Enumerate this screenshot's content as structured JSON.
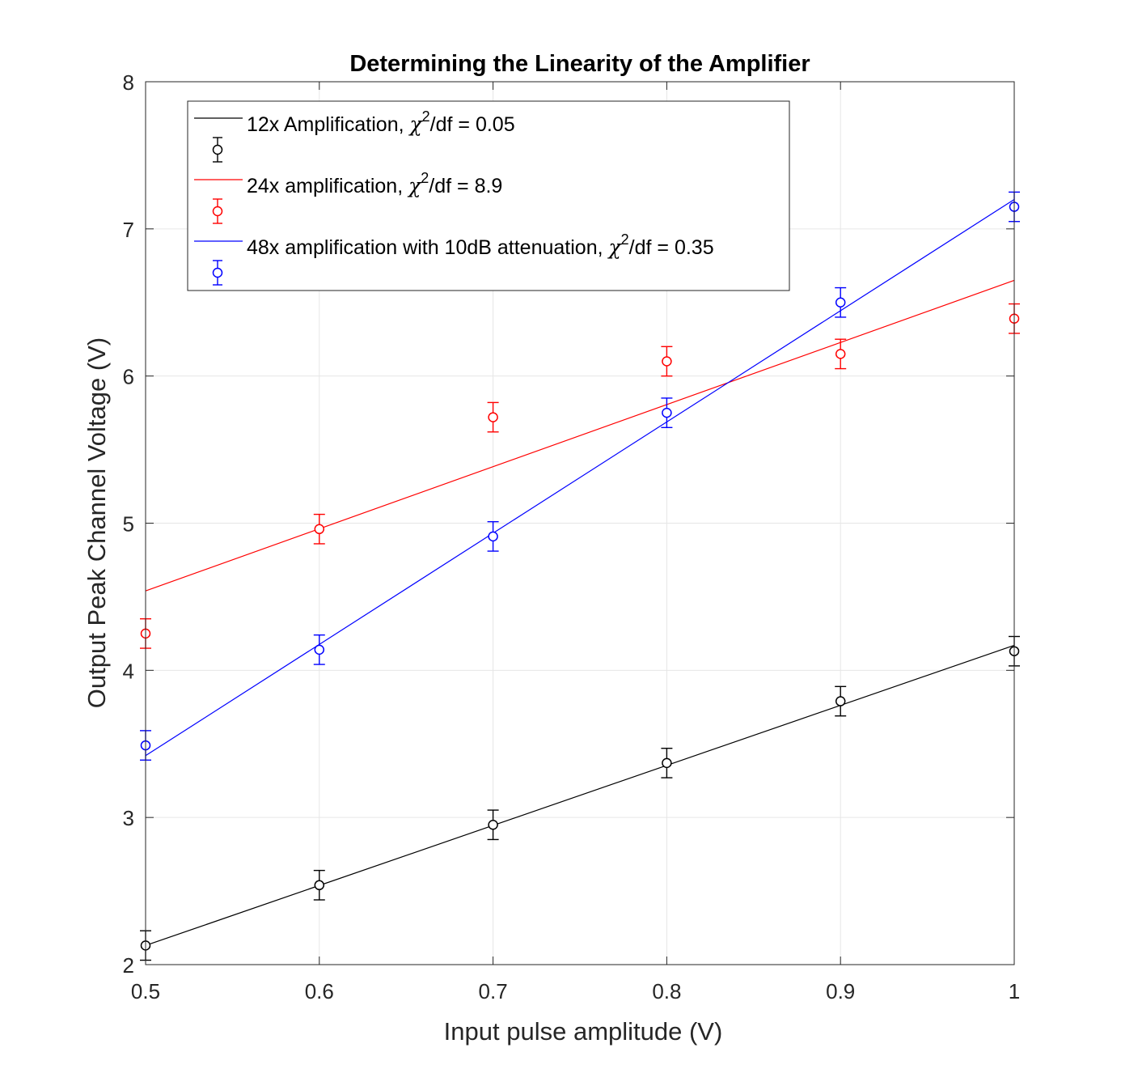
{
  "chart_data": {
    "type": "scatter",
    "title": "Determining the Linearity of the Amplifier",
    "xlabel": "Input pulse amplitude (V)",
    "ylabel": "Output Peak Channel Voltage (V)",
    "xlim": [
      0.5,
      1
    ],
    "ylim": [
      2,
      8
    ],
    "xticks": [
      0.5,
      0.6,
      0.7,
      0.8,
      0.9,
      1
    ],
    "xtick_labels": [
      "0.5",
      "0.6",
      "0.7",
      "0.8",
      "0.9",
      "1"
    ],
    "yticks": [
      2,
      3,
      4,
      5,
      6,
      7,
      8
    ],
    "ytick_labels": [
      "2",
      "3",
      "4",
      "5",
      "6",
      "7",
      "8"
    ],
    "grid": true,
    "legend_position": "top-left",
    "series": [
      {
        "name": "12x Amplification",
        "chi_symbol": "χ",
        "chi_exp": "2",
        "chi_suffix": "/df = 0.05",
        "color": "#000000",
        "x": [
          0.5,
          0.6,
          0.7,
          0.8,
          0.9,
          1.0
        ],
        "y": [
          2.13,
          2.54,
          2.95,
          3.37,
          3.79,
          4.13
        ],
        "error": [
          0.1,
          0.1,
          0.1,
          0.1,
          0.1,
          0.1
        ],
        "fit_line": [
          [
            0.5,
            2.13
          ],
          [
            1.0,
            4.17
          ]
        ]
      },
      {
        "name": "24x amplification",
        "chi_symbol": "χ",
        "chi_exp": "2",
        "chi_suffix": "/df = 8.9",
        "color": "#ff0000",
        "x": [
          0.5,
          0.6,
          0.7,
          0.8,
          0.9,
          1.0
        ],
        "y": [
          4.25,
          4.96,
          5.72,
          6.1,
          6.15,
          6.39
        ],
        "error": [
          0.1,
          0.1,
          0.1,
          0.1,
          0.1,
          0.1
        ],
        "fit_line": [
          [
            0.5,
            4.54
          ],
          [
            1.0,
            6.65
          ]
        ]
      },
      {
        "name": "48x amplification with 10dB attenuation",
        "chi_symbol": "χ",
        "chi_exp": "2",
        "chi_suffix": "/df = 0.35",
        "color": "#0000ff",
        "x": [
          0.5,
          0.6,
          0.7,
          0.8,
          0.9,
          1.0
        ],
        "y": [
          3.49,
          4.14,
          4.91,
          5.75,
          6.5,
          7.15
        ],
        "error": [
          0.1,
          0.1,
          0.1,
          0.1,
          0.1,
          0.1
        ],
        "fit_line": [
          [
            0.5,
            3.42
          ],
          [
            1.0,
            7.2
          ]
        ]
      }
    ]
  }
}
